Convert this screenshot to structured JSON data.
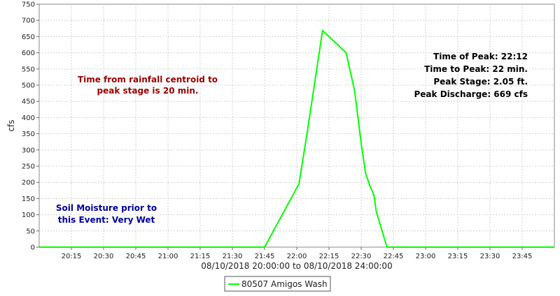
{
  "chart_data": {
    "type": "line",
    "xlabel": "08/10/2018 20:00:00 to 08/10/2018 24:00:00",
    "ylabel": "cfs",
    "xlim": [
      "20:00",
      "24:00"
    ],
    "ylim": [
      0,
      750
    ],
    "grid": true,
    "yticks": [
      0,
      50,
      100,
      150,
      200,
      250,
      300,
      350,
      400,
      450,
      500,
      550,
      600,
      650,
      700,
      750
    ],
    "xticks": [
      "20:15",
      "20:30",
      "20:45",
      "21:00",
      "21:15",
      "21:30",
      "21:45",
      "22:00",
      "22:15",
      "22:30",
      "22:45",
      "23:00",
      "23:15",
      "23:30",
      "23:45"
    ],
    "series": [
      {
        "name": "80507 Amigos Wash",
        "color": "#00ff00",
        "points": [
          {
            "x": "20:00",
            "y": 0
          },
          {
            "x": "21:45",
            "y": 0
          },
          {
            "x": "22:01",
            "y": 195
          },
          {
            "x": "22:05",
            "y": 360
          },
          {
            "x": "22:12",
            "y": 669
          },
          {
            "x": "22:23",
            "y": 600
          },
          {
            "x": "22:27",
            "y": 480
          },
          {
            "x": "22:30",
            "y": 320
          },
          {
            "x": "22:32",
            "y": 230
          },
          {
            "x": "22:34",
            "y": 190
          },
          {
            "x": "22:36",
            "y": 160
          },
          {
            "x": "22:37",
            "y": 110
          },
          {
            "x": "22:42",
            "y": 0
          },
          {
            "x": "24:00",
            "y": 0
          }
        ]
      }
    ],
    "annotations": {
      "peak": [
        "Time of Peak: 22:12",
        "Time to Peak: 22 min.",
        "Peak Stage: 2.05 ft.",
        "Peak Discharge: 669 cfs"
      ],
      "centroid": [
        "Time from rainfall centroid to",
        "peak stage is 20 min."
      ],
      "soil": [
        "Soil Moisture prior to",
        "this Event: Very Wet"
      ]
    },
    "legend": {
      "position": "bottom-center"
    },
    "colors": {
      "peak_text": "#000000",
      "centroid_text": "#990000",
      "soil_text": "#000099",
      "grid": "#d0d0d0"
    }
  }
}
